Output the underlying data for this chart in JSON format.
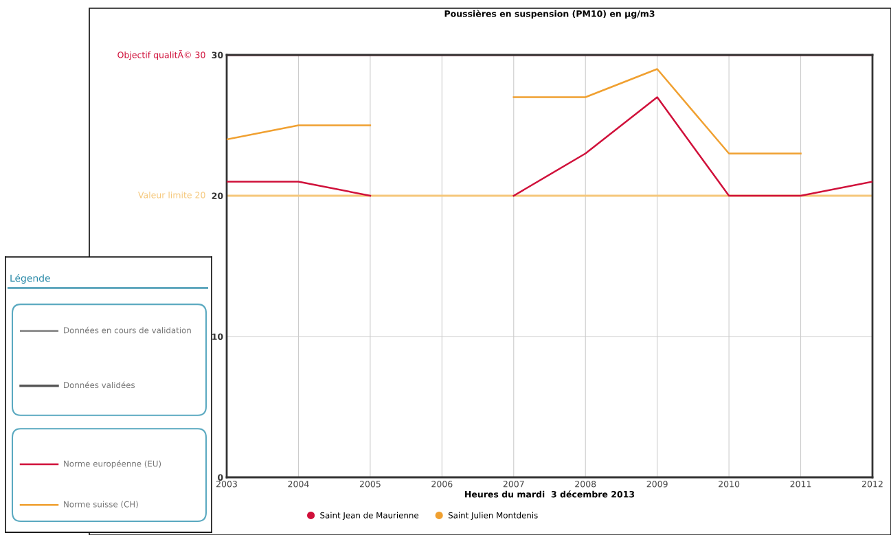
{
  "chart_data": {
    "type": "line",
    "title": "Poussières en suspension (PM10) en µg/m3",
    "xlabel": "Heures du mardi  3 décembre 2013",
    "x": [
      2003,
      2004,
      2005,
      2006,
      2007,
      2008,
      2009,
      2010,
      2011,
      2012
    ],
    "xlim": [
      2003,
      2012
    ],
    "xticks": [
      2003,
      2004,
      2005,
      2006,
      2007,
      2008,
      2009,
      2010,
      2011,
      2012
    ],
    "ylim": [
      0,
      30
    ],
    "yticks": [
      0,
      10,
      20,
      30
    ],
    "series": [
      {
        "name": "Saint Jean de Maurienne",
        "color": "#d0103a",
        "values": [
          21,
          21,
          20,
          null,
          20,
          23,
          27,
          20,
          20,
          21
        ]
      },
      {
        "name": "Saint Julien Montdenis",
        "color": "#f0a030",
        "values": [
          24,
          25,
          25,
          null,
          27,
          27,
          29,
          23,
          23,
          null
        ]
      }
    ],
    "ref_lines": [
      {
        "axis": "y",
        "value": 30,
        "label": "Objectif qualitÃ© 30",
        "color": "#d0103a"
      },
      {
        "axis": "y",
        "value": 20,
        "label": "Valeur limite 20",
        "color": "#f5c77a"
      }
    ],
    "annotations": [
      "Légende",
      "Données en cours de validation",
      "Données validées",
      "Norme européenne (EU)",
      "Norme suisse (CH)"
    ],
    "grid": true,
    "legend": "bottom",
    "marker": "none",
    "line_style": "solid"
  }
}
